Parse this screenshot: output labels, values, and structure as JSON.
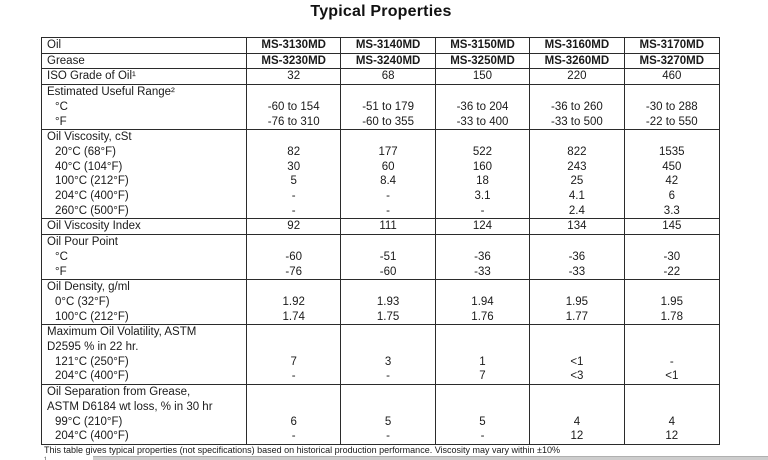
{
  "title": "Typical Properties",
  "colors": {
    "border": "#2b2b2b",
    "text": "#1a1a1a",
    "background": "#ffffff",
    "bottom_strip": "#cdcdcd"
  },
  "table": {
    "sections": [
      {
        "id": "oil",
        "bold": true,
        "rows": [
          {
            "label": "Oil",
            "indent": false,
            "values": [
              "MS-3130MD",
              "MS-3140MD",
              "MS-3150MD",
              "MS-3160MD",
              "MS-3170MD"
            ]
          }
        ]
      },
      {
        "id": "grease",
        "bold": true,
        "rows": [
          {
            "label": "Grease",
            "indent": false,
            "values": [
              "MS-3230MD",
              "MS-3240MD",
              "MS-3250MD",
              "MS-3260MD",
              "MS-3270MD"
            ]
          }
        ]
      },
      {
        "id": "iso-grade",
        "bold": false,
        "rows": [
          {
            "label": "ISO Grade of Oil¹",
            "indent": false,
            "values": [
              "32",
              "68",
              "150",
              "220",
              "460"
            ]
          }
        ]
      },
      {
        "id": "useful-range",
        "bold": false,
        "rows": [
          {
            "label": "Estimated Useful Range²",
            "indent": false,
            "values": [
              "",
              "",
              "",
              "",
              ""
            ]
          },
          {
            "label": "°C",
            "indent": true,
            "values": [
              "-60 to 154",
              "-51 to 179",
              "-36 to 204",
              "-36 to 260",
              "-30 to 288"
            ]
          },
          {
            "label": "°F",
            "indent": true,
            "values": [
              "-76 to 310",
              "-60 to 355",
              "-33 to 400",
              "-33 to 500",
              "-22 to 550"
            ]
          }
        ]
      },
      {
        "id": "viscosity",
        "bold": false,
        "rows": [
          {
            "label": "Oil Viscosity, cSt",
            "indent": false,
            "values": [
              "",
              "",
              "",
              "",
              ""
            ]
          },
          {
            "label": "20°C (68°F)",
            "indent": true,
            "values": [
              "82",
              "177",
              "522",
              "822",
              "1535"
            ]
          },
          {
            "label": "40°C (104°F)",
            "indent": true,
            "values": [
              "30",
              "60",
              "160",
              "243",
              "450"
            ]
          },
          {
            "label": "100°C (212°F)",
            "indent": true,
            "values": [
              "5",
              "8.4",
              "18",
              "25",
              "42"
            ]
          },
          {
            "label": "204°C (400°F)",
            "indent": true,
            "values": [
              "-",
              "-",
              "3.1",
              "4.1",
              "6"
            ]
          },
          {
            "label": "260°C (500°F)",
            "indent": true,
            "values": [
              "-",
              "-",
              "-",
              "2.4",
              "3.3"
            ]
          }
        ]
      },
      {
        "id": "viscosity-index",
        "bold": false,
        "rows": [
          {
            "label": "Oil Viscosity Index",
            "indent": false,
            "values": [
              "92",
              "111",
              "124",
              "134",
              "145"
            ]
          }
        ]
      },
      {
        "id": "pour-point",
        "bold": false,
        "rows": [
          {
            "label": "Oil Pour Point",
            "indent": false,
            "values": [
              "",
              "",
              "",
              "",
              ""
            ]
          },
          {
            "label": "°C",
            "indent": true,
            "values": [
              "-60",
              "-51",
              "-36",
              "-36",
              "-30"
            ]
          },
          {
            "label": "°F",
            "indent": true,
            "values": [
              "-76",
              "-60",
              "-33",
              "-33",
              "-22"
            ]
          }
        ]
      },
      {
        "id": "density",
        "bold": false,
        "rows": [
          {
            "label": "Oil Density, g/ml",
            "indent": false,
            "values": [
              "",
              "",
              "",
              "",
              ""
            ]
          },
          {
            "label": "0°C (32°F)",
            "indent": true,
            "values": [
              "1.92",
              "1.93",
              "1.94",
              "1.95",
              "1.95"
            ]
          },
          {
            "label": "100°C (212°F)",
            "indent": true,
            "values": [
              "1.74",
              "1.75",
              "1.76",
              "1.77",
              "1.78"
            ]
          }
        ]
      },
      {
        "id": "volatility",
        "bold": false,
        "rows": [
          {
            "label": "Maximum Oil Volatility, ASTM\nD2595 % in 22 hr.",
            "indent": false,
            "values": [
              "",
              "",
              "",
              "",
              ""
            ]
          },
          {
            "label": "121°C (250°F)",
            "indent": true,
            "values": [
              "7",
              "3",
              "1",
              "<1",
              "-"
            ]
          },
          {
            "label": "204°C (400°F)",
            "indent": true,
            "values": [
              "-",
              "-",
              "7",
              "<3",
              "<1"
            ]
          }
        ]
      },
      {
        "id": "separation",
        "bold": false,
        "rows": [
          {
            "label": "Oil Separation from Grease,\nASTM D6184 wt loss, % in 30 hr",
            "indent": false,
            "values": [
              "",
              "",
              "",
              "",
              ""
            ]
          },
          {
            "label": "99°C (210°F)",
            "indent": true,
            "values": [
              "6",
              "5",
              "5",
              "4",
              "4"
            ]
          },
          {
            "label": "204°C (400°F)",
            "indent": true,
            "values": [
              "-",
              "-",
              "-",
              "12",
              "12"
            ]
          }
        ]
      }
    ]
  },
  "footnotes": {
    "main": "This table gives typical properties (not specifications) based on historical production performance. Viscosity may vary within ±10%",
    "clipped": "¹"
  }
}
